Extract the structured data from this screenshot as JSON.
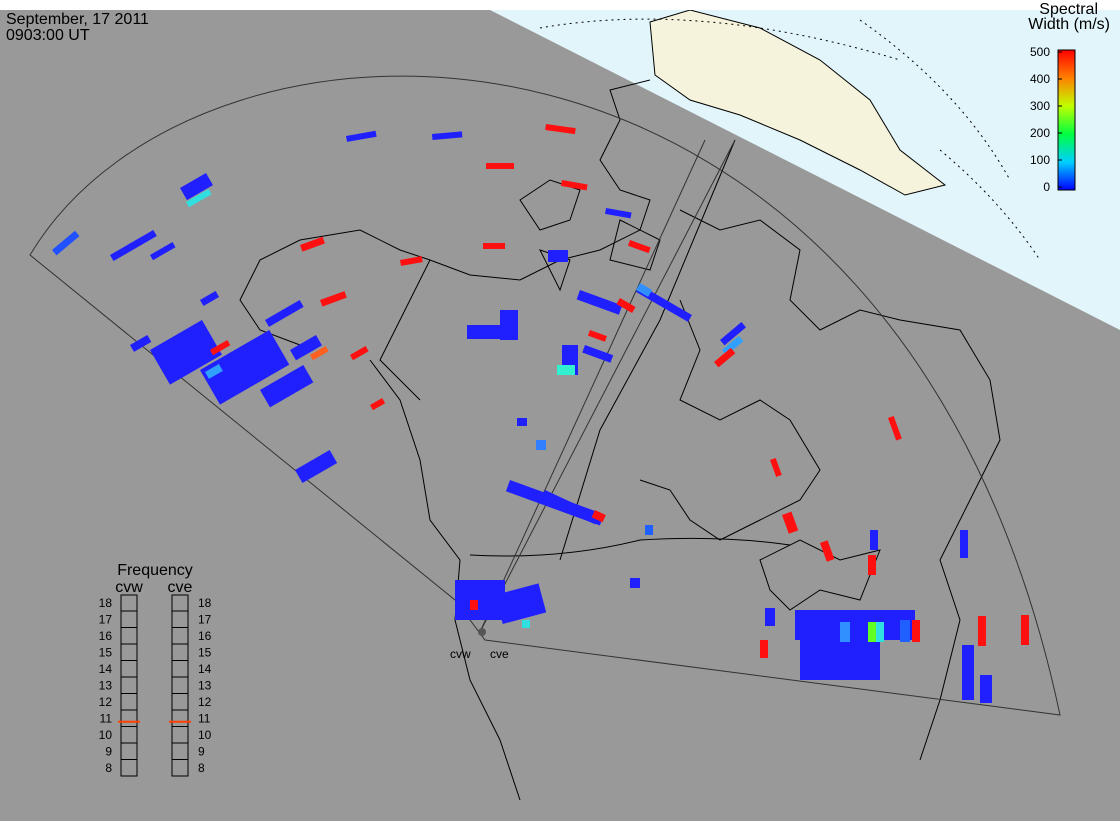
{
  "header": {
    "date": "September, 17 2011",
    "time": "0903:00 UT"
  },
  "colorbar": {
    "title_line1": "Spectral",
    "title_line2": "Width (m/s)",
    "range": [
      0,
      500
    ],
    "ticks": [
      0,
      100,
      200,
      300,
      400,
      500
    ]
  },
  "frequency": {
    "title": "Frequency",
    "range": [
      8,
      18
    ],
    "ticks": [
      8,
      9,
      10,
      11,
      12,
      13,
      14,
      15,
      16,
      17,
      18
    ],
    "radars": [
      {
        "name": "cvw",
        "value": 10.8
      },
      {
        "name": "cve",
        "value": 10.8
      }
    ]
  },
  "sites": [
    "cvw",
    "cve"
  ]
}
